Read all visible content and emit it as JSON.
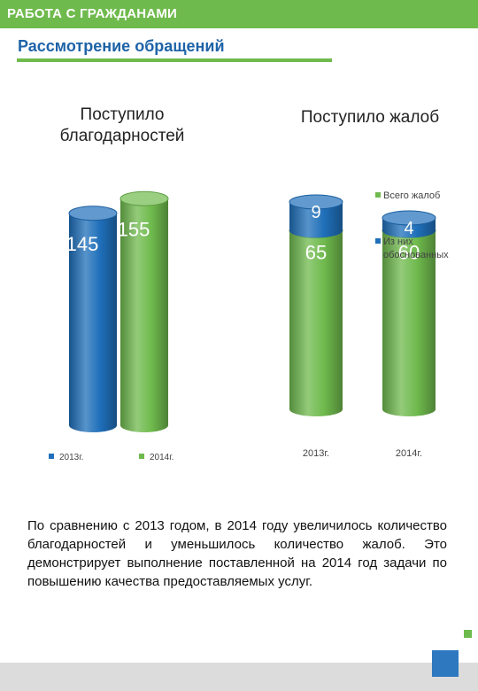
{
  "header": {
    "title": "РАБОТА С ГРАЖДАНАМИ",
    "subtitle": "Рассмотрение обращений"
  },
  "colors": {
    "green": "#6fba4d",
    "blue": "#1f6fba",
    "title_blue": "#1e63a8"
  },
  "chart_data": [
    {
      "type": "bar",
      "title": "Поступило благодарностей",
      "title_lines": [
        "Поступило",
        "благодарностей"
      ],
      "categories": [
        "2013г.",
        "2014г."
      ],
      "values": [
        145,
        155
      ],
      "series_colors": [
        "#1f6fba",
        "#6fba4d"
      ],
      "legend": [
        "2013г.",
        "2014г."
      ],
      "legend_position": "bottom"
    },
    {
      "type": "bar",
      "title": "Поступило жалоб",
      "categories": [
        "2013г.",
        "2014г."
      ],
      "series": [
        {
          "name": "Всего жалоб",
          "values": [
            65,
            60
          ],
          "color": "#6fba4d"
        },
        {
          "name": "Из них обоснованных",
          "values": [
            9,
            4
          ],
          "color": "#1f6fba"
        }
      ],
      "legend_lines": [
        [
          "Всего жалоб"
        ],
        [
          "Из них",
          "обоснованных"
        ]
      ],
      "legend_position": "right"
    }
  ],
  "caption": "По сравнению с 2013 годом, в 2014 году увеличилось количество благодарностей и уменьшилось количество жалоб. Это демонстрирует выполнение поставленной на 2014 год задачи по повышению качества предоставляемых услуг."
}
